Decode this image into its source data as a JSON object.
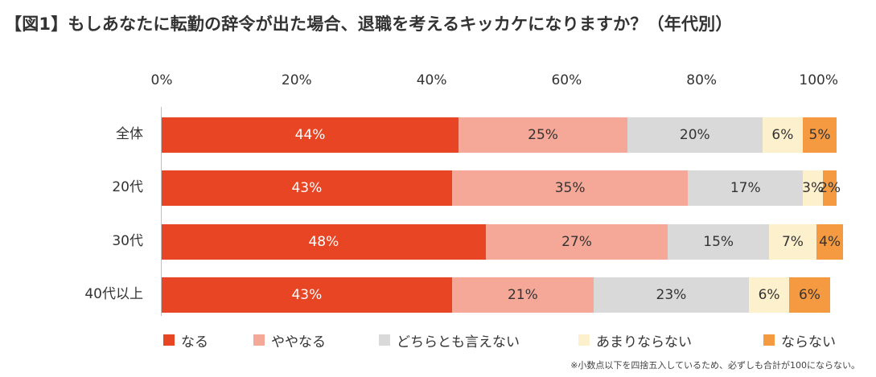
{
  "title": "【図1】もしあなたに転勤の辞令が出た場合、退職を考えるキッカケになりますか？（年代別）",
  "footnote": "※小数点以下を四捨五入しているため、必ずしも合計が100にならない。",
  "colors": {
    "naru": "#e84524",
    "yaya_naru": "#f5a898",
    "dochira_tomo": "#d9d9d9",
    "amari_naranai": "#fdf0cc",
    "naranai": "#f59a40"
  },
  "chart_data": {
    "type": "bar",
    "orientation": "horizontal",
    "stacked": true,
    "title": "【図1】もしあなたに転勤の辞令が出た場合、退職を考えるキッカケになりますか？（年代別）",
    "xlim": [
      0,
      100
    ],
    "x_ticks": [
      "0%",
      "20%",
      "40%",
      "60%",
      "80%",
      "100%"
    ],
    "x_tick_values": [
      0,
      20,
      40,
      60,
      80,
      100
    ],
    "categories": [
      "全体",
      "20代",
      "30代",
      "40代以上"
    ],
    "legend_position": "bottom",
    "series": [
      {
        "name": "なる",
        "values": [
          44,
          43,
          48,
          43
        ],
        "labels": [
          "44%",
          "43%",
          "48%",
          "43%"
        ]
      },
      {
        "name": "ややなる",
        "values": [
          25,
          35,
          27,
          21
        ],
        "labels": [
          "25%",
          "35%",
          "27%",
          "21%"
        ]
      },
      {
        "name": "どちらとも言えない",
        "values": [
          20,
          17,
          15,
          23
        ],
        "labels": [
          "20%",
          "17%",
          "15%",
          "23%"
        ]
      },
      {
        "name": "あまりならない",
        "values": [
          6,
          3,
          7,
          6
        ],
        "labels": [
          "6%",
          "3%",
          "7%",
          "6%"
        ]
      },
      {
        "name": "ならない",
        "values": [
          5,
          2,
          4,
          6
        ],
        "labels": [
          "5%",
          "2%",
          "4%",
          "6%"
        ]
      }
    ]
  }
}
